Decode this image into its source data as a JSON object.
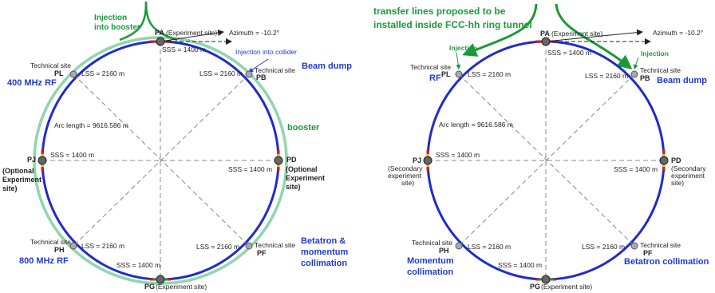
{
  "left": {
    "injection_booster": [
      "Injection",
      "into booster"
    ],
    "pa": "PA",
    "pa_sub": " (Experiment site)",
    "azimuth": "Azimuth = -10.2°",
    "sss_top": "SSS = 1400 m",
    "injection_collider": "Injection into collider",
    "pl_tech": "Technical site",
    "pl": "PL",
    "lss_pl": "LSS = 2160 m",
    "pb_tech": "Technical site",
    "pb": "PB",
    "lss_pb": "LSS = 2160 m",
    "beam_dump": "Beam dump",
    "rf400": "400 MHz RF",
    "arc": "Arc length = 9616.586 m",
    "booster": "booster",
    "pj": "PJ",
    "sss_left": "SSS = 1400 m",
    "pj_sub": [
      "(Optional",
      "Experiment",
      "site)"
    ],
    "pd": "PD",
    "sss_right": "SSS = 1400 m",
    "pd_sub": [
      "(Optional",
      "Experiment",
      "site)"
    ],
    "ph_tech": "Technical site",
    "ph": "PH",
    "lss_ph": "LSS = 2160 m",
    "pf_tech": "Technical site",
    "pf": "PF",
    "lss_pf": "LSS = 2160 m",
    "rf800": "800 MHz RF",
    "betatron": [
      "Betatron &",
      "momentum",
      "collimation"
    ],
    "sss_bottom": "SSS = 1400 m",
    "pg": "PG",
    "pg_sub": " (Experiment site)"
  },
  "right": {
    "transfer": [
      "transfer lines proposed to be",
      "installed inside FCC-hh ring tunnel"
    ],
    "injection_left": "Injection",
    "injection_right": "Injection",
    "pa": "PA",
    "pa_sub": " (Experiment site)",
    "azimuth": "Azimuth = -10.2°",
    "sss_top": "SSS = 1400 m",
    "pl_tech": "Technical site",
    "pl": "PL",
    "lss_pl": "LSS = 2160 m",
    "rf": "RF",
    "pb_tech": "Technical site",
    "pb": "PB",
    "lss_pb": "LSS = 2160 m",
    "beam_dump": "Beam dump",
    "arc": "Arc length = 9616.586 m",
    "pj": "PJ",
    "sss_left": "SSS = 1400 m",
    "pj_sub": [
      "(Secondary",
      "experiment",
      "site)"
    ],
    "pd": "PD",
    "sss_right": "SSS = 1400 m",
    "pd_sub": [
      "(Secondary",
      "experiment",
      "site)"
    ],
    "ph_tech": "Technical site",
    "ph": "PH",
    "lss_ph": "LSS = 2160 m",
    "pf_tech": "Technical site",
    "pf": "PF",
    "lss_pf": "LSS = 2160 m",
    "momentum": [
      "Momentum",
      "collimation"
    ],
    "betatron": "Betatron collimation",
    "sss_bottom": "SSS = 1400 m",
    "pg": "PG",
    "pg_sub": " (Experiment site)"
  },
  "colors": {
    "ring": "#1f2bd0",
    "booster": "#8fd6ae",
    "green_text": "#1a9a3a",
    "blue_text": "#1f3ad6",
    "node": "#666666"
  }
}
